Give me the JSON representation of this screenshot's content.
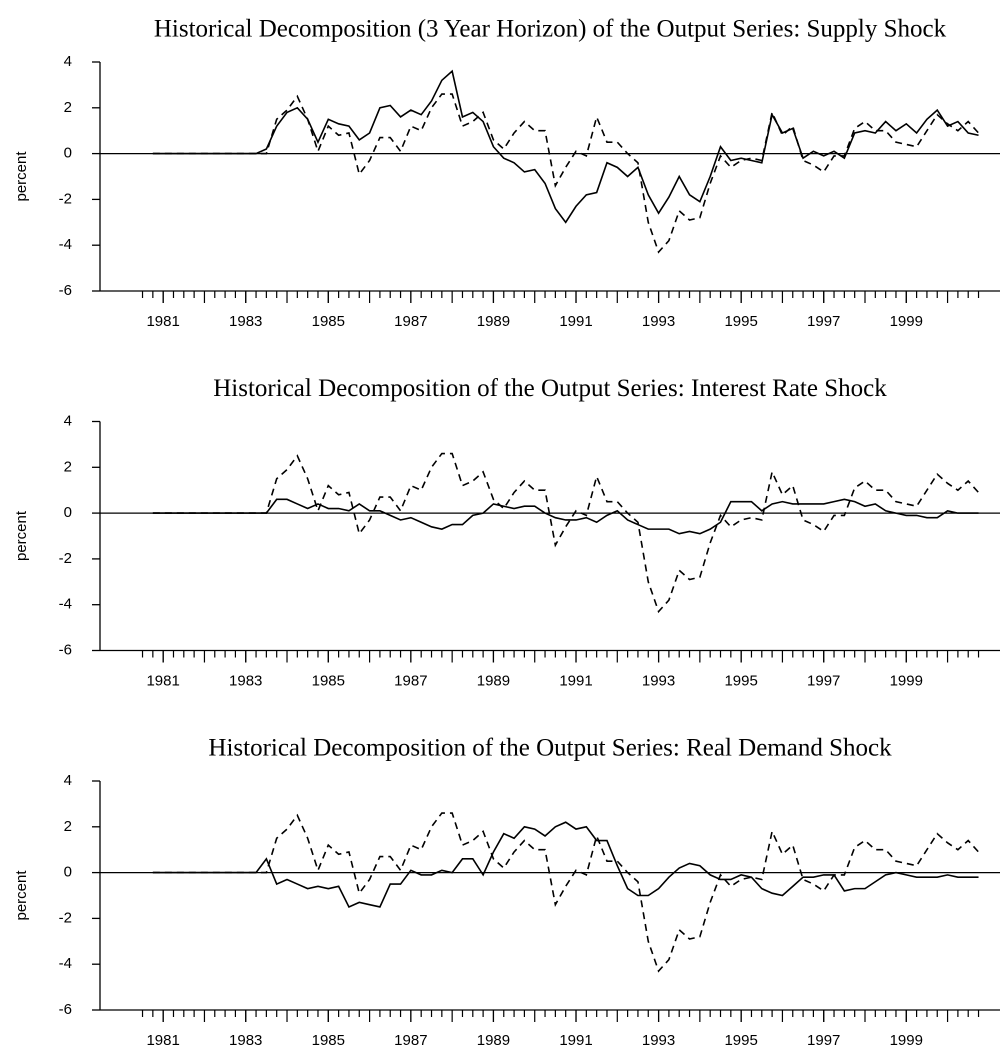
{
  "chart_data": [
    {
      "type": "line",
      "title": "Historical Decomposition (3 Year Horizon) of the Output Series: Supply Shock",
      "ylabel": "percent",
      "x": [
        1980.75,
        1983.25,
        1983.5,
        1983.75,
        1984,
        1984.25,
        1984.5,
        1984.75,
        1985,
        1985.25,
        1985.5,
        1985.75,
        1986,
        1986.25,
        1986.5,
        1986.75,
        1987,
        1987.25,
        1987.5,
        1987.75,
        1988,
        1988.25,
        1988.5,
        1988.75,
        1989,
        1989.25,
        1989.5,
        1989.75,
        1990,
        1990.25,
        1990.5,
        1990.75,
        1991,
        1991.25,
        1991.5,
        1991.75,
        1992,
        1992.25,
        1992.5,
        1992.75,
        1993,
        1993.25,
        1993.5,
        1993.75,
        1994,
        1994.25,
        1994.5,
        1994.75,
        1995,
        1995.25,
        1995.5,
        1995.75,
        1996,
        1996.25,
        1996.5,
        1996.75,
        1997,
        1997.25,
        1997.5,
        1997.75,
        1998,
        1998.25,
        1998.5,
        1998.75,
        1999,
        1999.25,
        1999.5,
        1999.75,
        2000,
        2000.25,
        2000.5,
        2000.75
      ],
      "series": [
        {
          "style": "dashed",
          "color": "#000000",
          "values": [
            0,
            0,
            0,
            1.5,
            1.9,
            2.5,
            1.5,
            0.1,
            1.2,
            0.8,
            0.9,
            -0.9,
            -0.3,
            0.7,
            0.7,
            0.1,
            1.2,
            1.0,
            2.0,
            2.6,
            2.6,
            1.2,
            1.4,
            1.8,
            0.6,
            0.2,
            0.9,
            1.4,
            1.0,
            1.0,
            -1.4,
            -0.6,
            0.1,
            -0.1,
            1.6,
            0.5,
            0.5,
            0.0,
            -0.4,
            -3.0,
            -4.3,
            -3.8,
            -2.5,
            -2.9,
            -2.8,
            -1.3,
            -0.1,
            -0.6,
            -0.3,
            -0.2,
            -0.3,
            1.8,
            0.8,
            1.2,
            -0.3,
            -0.5,
            -0.8,
            -0.1,
            -0.1,
            1.1,
            1.4,
            1.0,
            1.0,
            0.5,
            0.4,
            0.3,
            1.0,
            1.7,
            1.3,
            1.0,
            1.4,
            0.9
          ]
        },
        {
          "style": "solid",
          "color": "#000000",
          "values": [
            0,
            0,
            0.2,
            1.2,
            1.8,
            2.0,
            1.5,
            0.5,
            1.5,
            1.3,
            1.2,
            0.6,
            0.9,
            2.0,
            2.1,
            1.6,
            1.9,
            1.7,
            2.3,
            3.2,
            3.6,
            1.6,
            1.8,
            1.4,
            0.3,
            -0.2,
            -0.4,
            -0.8,
            -0.7,
            -1.3,
            -2.4,
            -3.0,
            -2.3,
            -1.8,
            -1.7,
            -0.4,
            -0.6,
            -1.0,
            -0.6,
            -1.8,
            -2.6,
            -1.9,
            -1.0,
            -1.8,
            -2.1,
            -1.0,
            0.3,
            -0.3,
            -0.2,
            -0.3,
            -0.4,
            1.7,
            0.9,
            1.1,
            -0.2,
            0.1,
            -0.1,
            0.1,
            -0.2,
            0.9,
            1.0,
            0.9,
            1.4,
            1.0,
            1.3,
            0.9,
            1.5,
            1.9,
            1.2,
            1.4,
            0.9,
            0.8
          ]
        }
      ],
      "xlim": [
        1979.47,
        2001.27
      ],
      "xticks": [
        1981,
        1983,
        1985,
        1987,
        1989,
        1991,
        1993,
        1995,
        1997,
        1999
      ],
      "ylim": [
        -6,
        4
      ],
      "yticks": [
        -6,
        -4,
        -2,
        0,
        2,
        4
      ],
      "zero_line": true
    },
    {
      "type": "line",
      "title": "Historical Decomposition of the Output Series: Interest Rate Shock",
      "ylabel": "percent",
      "x": [
        1980.75,
        1983.25,
        1983.5,
        1983.75,
        1984,
        1984.25,
        1984.5,
        1984.75,
        1985,
        1985.25,
        1985.5,
        1985.75,
        1986,
        1986.25,
        1986.5,
        1986.75,
        1987,
        1987.25,
        1987.5,
        1987.75,
        1988,
        1988.25,
        1988.5,
        1988.75,
        1989,
        1989.25,
        1989.5,
        1989.75,
        1990,
        1990.25,
        1990.5,
        1990.75,
        1991,
        1991.25,
        1991.5,
        1991.75,
        1992,
        1992.25,
        1992.5,
        1992.75,
        1993,
        1993.25,
        1993.5,
        1993.75,
        1994,
        1994.25,
        1994.5,
        1994.75,
        1995,
        1995.25,
        1995.5,
        1995.75,
        1996,
        1996.25,
        1996.5,
        1996.75,
        1997,
        1997.25,
        1997.5,
        1997.75,
        1998,
        1998.25,
        1998.5,
        1998.75,
        1999,
        1999.25,
        1999.5,
        1999.75,
        2000,
        2000.25,
        2000.5,
        2000.75
      ],
      "series": [
        {
          "style": "dashed",
          "color": "#000000",
          "values": [
            0,
            0,
            0,
            1.5,
            1.9,
            2.5,
            1.5,
            0.1,
            1.2,
            0.8,
            0.9,
            -0.9,
            -0.3,
            0.7,
            0.7,
            0.1,
            1.2,
            1.0,
            2.0,
            2.6,
            2.6,
            1.2,
            1.4,
            1.8,
            0.6,
            0.2,
            0.9,
            1.4,
            1.0,
            1.0,
            -1.4,
            -0.6,
            0.1,
            -0.1,
            1.6,
            0.5,
            0.5,
            0.0,
            -0.4,
            -3.0,
            -4.3,
            -3.8,
            -2.5,
            -2.9,
            -2.8,
            -1.3,
            -0.1,
            -0.6,
            -0.3,
            -0.2,
            -0.3,
            1.8,
            0.8,
            1.2,
            -0.3,
            -0.5,
            -0.8,
            -0.1,
            -0.1,
            1.1,
            1.4,
            1.0,
            1.0,
            0.5,
            0.4,
            0.3,
            1.0,
            1.7,
            1.3,
            1.0,
            1.4,
            0.9
          ]
        },
        {
          "style": "solid",
          "color": "#000000",
          "values": [
            0,
            0,
            0,
            0.6,
            0.6,
            0.4,
            0.2,
            0.4,
            0.2,
            0.2,
            0.1,
            0.4,
            0.1,
            0.1,
            -0.1,
            -0.3,
            -0.2,
            -0.4,
            -0.6,
            -0.7,
            -0.5,
            -0.5,
            -0.1,
            0,
            0.4,
            0.3,
            0.2,
            0.3,
            0.3,
            0,
            -0.2,
            -0.3,
            -0.3,
            -0.2,
            -0.4,
            -0.1,
            0.1,
            -0.3,
            -0.5,
            -0.7,
            -0.7,
            -0.7,
            -0.9,
            -0.8,
            -0.9,
            -0.7,
            -0.4,
            0.5,
            0.5,
            0.5,
            0.1,
            0.4,
            0.5,
            0.4,
            0.4,
            0.4,
            0.4,
            0.5,
            0.6,
            0.5,
            0.3,
            0.4,
            0.1,
            0,
            -0.1,
            -0.1,
            -0.2,
            -0.2,
            0.1,
            0,
            0,
            0
          ]
        }
      ],
      "xlim": [
        1979.47,
        2001.27
      ],
      "xticks": [
        1981,
        1983,
        1985,
        1987,
        1989,
        1991,
        1993,
        1995,
        1997,
        1999
      ],
      "ylim": [
        -6,
        4
      ],
      "yticks": [
        -6,
        -4,
        -2,
        0,
        2,
        4
      ],
      "zero_line": true
    },
    {
      "type": "line",
      "title": "Historical Decomposition of the Output Series: Real Demand Shock",
      "ylabel": "percent",
      "x": [
        1980.75,
        1983.25,
        1983.5,
        1983.75,
        1984,
        1984.25,
        1984.5,
        1984.75,
        1985,
        1985.25,
        1985.5,
        1985.75,
        1986,
        1986.25,
        1986.5,
        1986.75,
        1987,
        1987.25,
        1987.5,
        1987.75,
        1988,
        1988.25,
        1988.5,
        1988.75,
        1989,
        1989.25,
        1989.5,
        1989.75,
        1990,
        1990.25,
        1990.5,
        1990.75,
        1991,
        1991.25,
        1991.5,
        1991.75,
        1992,
        1992.25,
        1992.5,
        1992.75,
        1993,
        1993.25,
        1993.5,
        1993.75,
        1994,
        1994.25,
        1994.5,
        1994.75,
        1995,
        1995.25,
        1995.5,
        1995.75,
        1996,
        1996.25,
        1996.5,
        1996.75,
        1997,
        1997.25,
        1997.5,
        1997.75,
        1998,
        1998.25,
        1998.5,
        1998.75,
        1999,
        1999.25,
        1999.5,
        1999.75,
        2000,
        2000.25,
        2000.5,
        2000.75
      ],
      "series": [
        {
          "style": "dashed",
          "color": "#000000",
          "values": [
            0,
            0,
            0,
            1.5,
            1.9,
            2.5,
            1.5,
            0.1,
            1.2,
            0.8,
            0.9,
            -0.9,
            -0.3,
            0.7,
            0.7,
            0.1,
            1.2,
            1.0,
            2.0,
            2.6,
            2.6,
            1.2,
            1.4,
            1.8,
            0.6,
            0.2,
            0.9,
            1.4,
            1.0,
            1.0,
            -1.4,
            -0.6,
            0.1,
            -0.1,
            1.6,
            0.5,
            0.5,
            0.0,
            -0.4,
            -3.0,
            -4.3,
            -3.8,
            -2.5,
            -2.9,
            -2.8,
            -1.3,
            -0.1,
            -0.6,
            -0.3,
            -0.2,
            -0.3,
            1.8,
            0.8,
            1.2,
            -0.3,
            -0.5,
            -0.8,
            -0.1,
            -0.1,
            1.1,
            1.4,
            1.0,
            1.0,
            0.5,
            0.4,
            0.3,
            1.0,
            1.7,
            1.3,
            1.0,
            1.4,
            0.9
          ]
        },
        {
          "style": "solid",
          "color": "#000000",
          "values": [
            0,
            0,
            0.6,
            -0.5,
            -0.3,
            -0.5,
            -0.7,
            -0.6,
            -0.7,
            -0.6,
            -1.5,
            -1.3,
            -1.4,
            -1.5,
            -0.5,
            -0.5,
            0.1,
            -0.1,
            -0.1,
            0.1,
            0.0,
            0.6,
            0.6,
            -0.1,
            0.9,
            1.7,
            1.5,
            2.0,
            1.9,
            1.6,
            2.0,
            2.2,
            1.9,
            2.0,
            1.4,
            1.4,
            0.3,
            -0.7,
            -1.0,
            -1.0,
            -0.7,
            -0.2,
            0.2,
            0.4,
            0.3,
            -0.1,
            -0.3,
            -0.3,
            -0.1,
            -0.2,
            -0.7,
            -0.9,
            -1.0,
            -0.6,
            -0.2,
            -0.2,
            -0.1,
            -0.1,
            -0.8,
            -0.7,
            -0.7,
            -0.4,
            -0.1,
            0,
            -0.1,
            -0.2,
            -0.2,
            -0.2,
            -0.1,
            -0.2,
            -0.2,
            -0.2
          ]
        }
      ],
      "xlim": [
        1979.47,
        2001.27
      ],
      "xticks": [
        1981,
        1983,
        1985,
        1987,
        1989,
        1991,
        1993,
        1995,
        1997,
        1999
      ],
      "ylim": [
        -6,
        4
      ],
      "yticks": [
        -6,
        -4,
        -2,
        0,
        2,
        4
      ],
      "zero_line": true
    }
  ]
}
